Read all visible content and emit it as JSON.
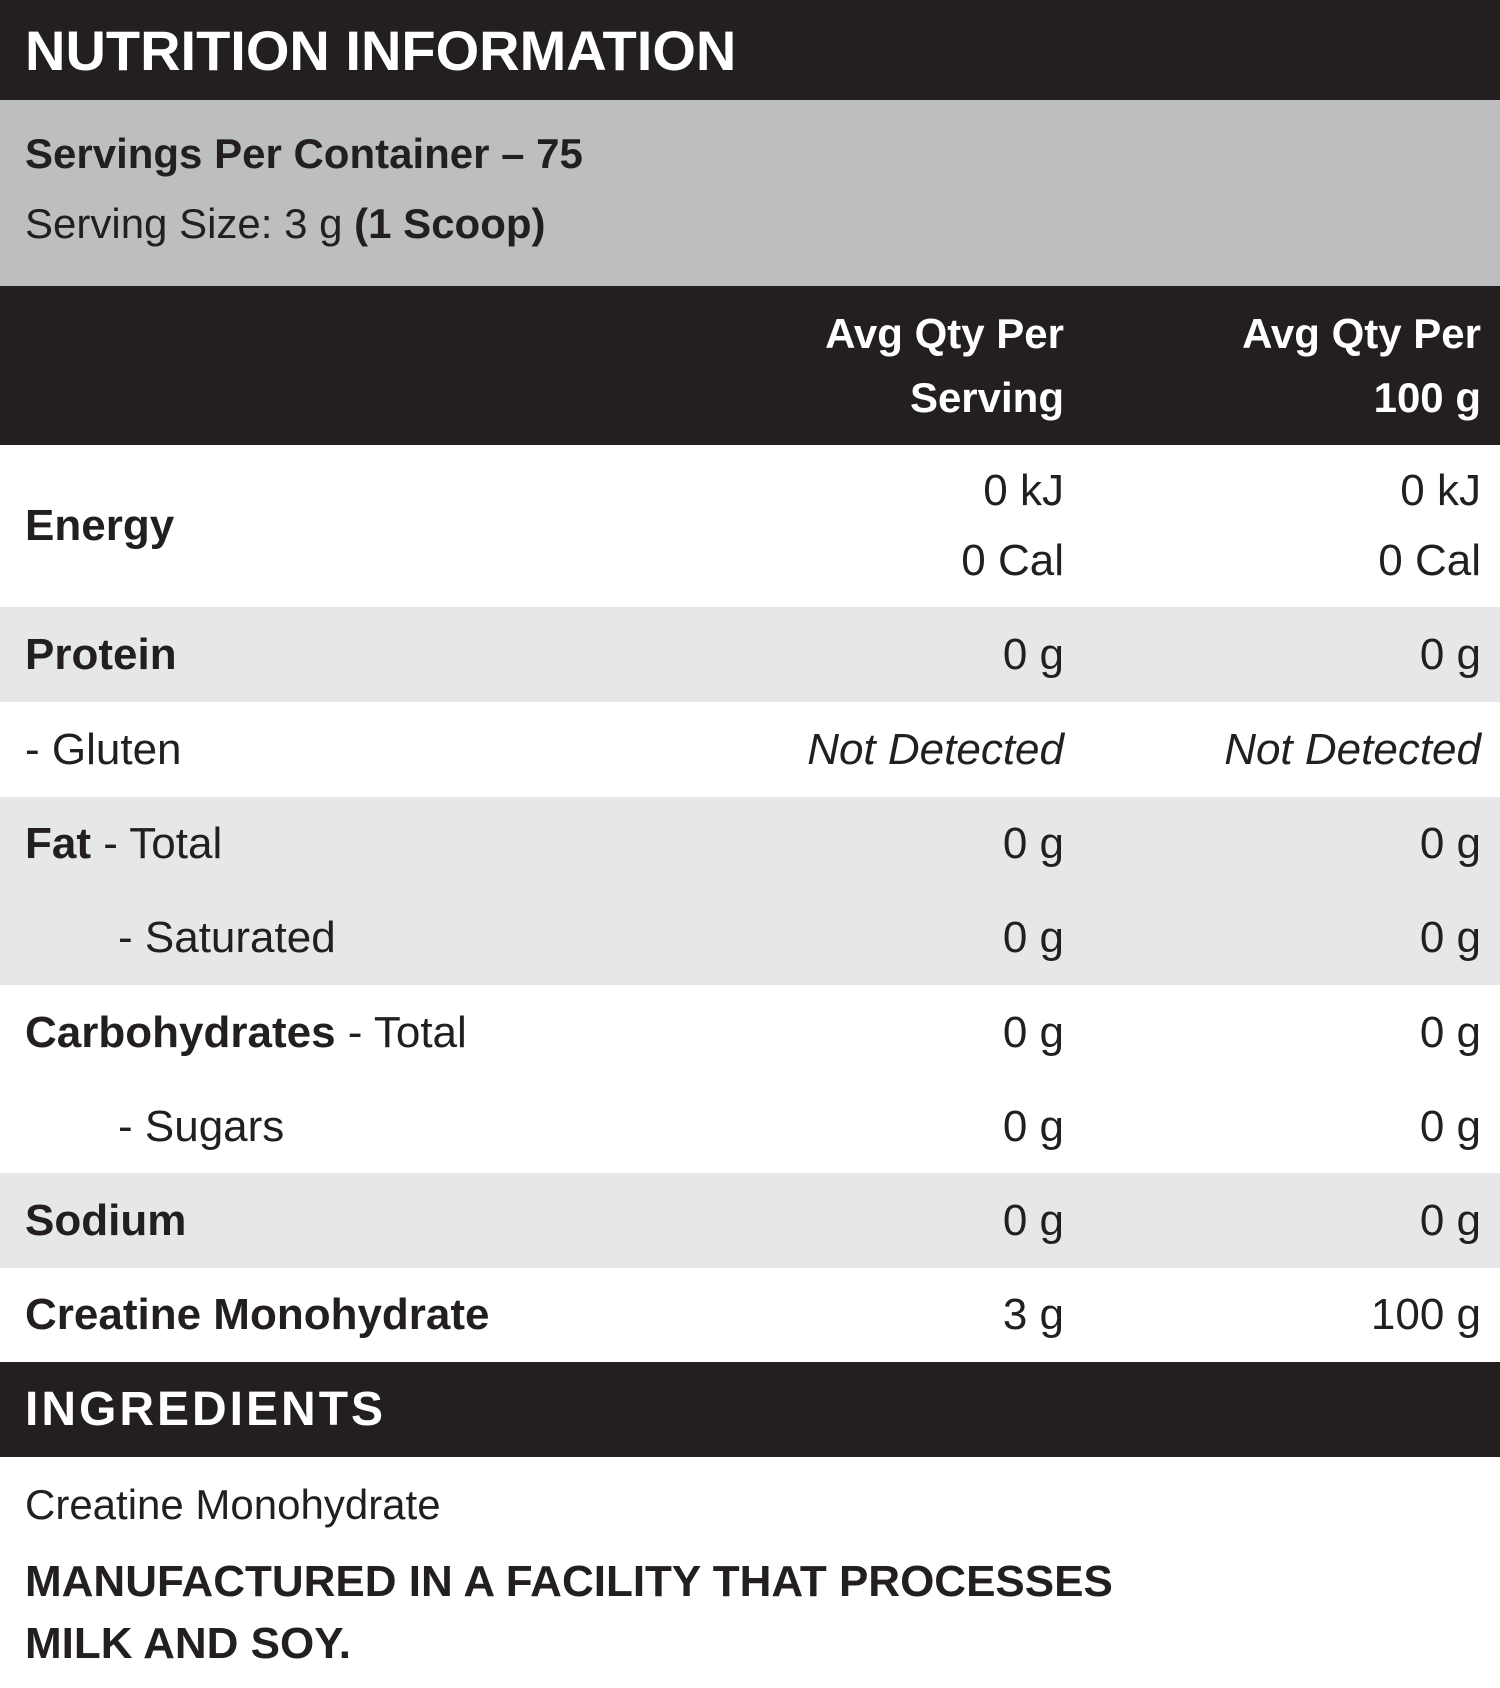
{
  "title_bar": {
    "title": "NUTRITION INFORMATION"
  },
  "serving_info": {
    "servings_per_container": "Servings Per Container – 75",
    "serving_size_prefix": "Serving Size: 3 g ",
    "serving_size_bold": "(1 Scoop)"
  },
  "table": {
    "col_headers": {
      "serving_line1": "Avg Qty Per",
      "serving_line2": "Serving",
      "per100_line1": "Avg Qty Per",
      "per100_line2": "100 g"
    },
    "rows": [
      {
        "label_bold": "Energy",
        "label_rest": "",
        "serving": [
          "0 kJ",
          "0 Cal"
        ],
        "per100": [
          "0 kJ",
          "0 Cal"
        ]
      },
      {
        "label_bold": "Protein",
        "label_rest": "",
        "serving": [
          "0 g"
        ],
        "per100": [
          "0 g"
        ]
      },
      {
        "label_bold": "",
        "label_rest": "- Gluten",
        "serving": [
          "Not Detected"
        ],
        "per100": [
          "Not Detected"
        ]
      },
      {
        "label_bold": "Fat",
        "label_rest": " - Total",
        "serving": [
          "0 g"
        ],
        "per100": [
          "0 g"
        ]
      },
      {
        "label_bold": "",
        "label_rest": "- Saturated",
        "serving": [
          "0 g"
        ],
        "per100": [
          "0 g"
        ]
      },
      {
        "label_bold": "Carbohydrates",
        "label_rest": " - Total",
        "serving": [
          "0 g"
        ],
        "per100": [
          "0 g"
        ]
      },
      {
        "label_bold": "",
        "label_rest": "- Sugars",
        "serving": [
          "0 g"
        ],
        "per100": [
          "0 g"
        ]
      },
      {
        "label_bold": "Sodium",
        "label_rest": "",
        "serving": [
          "0 g"
        ],
        "per100": [
          "0 g"
        ]
      },
      {
        "label_bold": "Creatine Monohydrate",
        "label_rest": "",
        "serving": [
          "3 g"
        ],
        "per100": [
          "100 g"
        ]
      }
    ]
  },
  "ingredients": {
    "heading": "INGREDIENTS",
    "list": "Creatine Monohydrate",
    "allergen_notice": "MANUFACTURED IN A FACILITY THAT PROCESSES MILK AND SOY."
  },
  "colors": {
    "bar_black": "#231f20",
    "serving_band_gray": "#bcbec0",
    "row_gray": "#e6e7e8",
    "text": "#231f20"
  }
}
